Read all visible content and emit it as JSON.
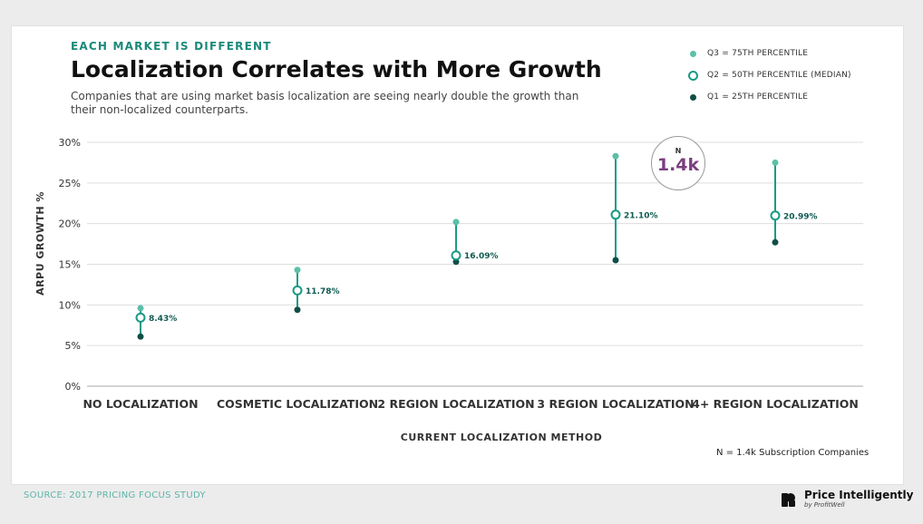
{
  "header": {
    "eyebrow": "EACH MARKET IS DIFFERENT",
    "title": "Localization Correlates with More Growth",
    "subtitle": "Companies that are using market basis localization are seeing nearly double the growth than their non-localized counterparts."
  },
  "legend": [
    {
      "key": "q3",
      "label": "Q3 = 75TH PERCENTILE"
    },
    {
      "key": "q2",
      "label": "Q2 = 50TH PERCENTILE (MEDIAN)"
    },
    {
      "key": "q1",
      "label": "Q1 = 25TH PERCENTILE"
    }
  ],
  "n_bubble": {
    "label": "N",
    "value": "1.4k"
  },
  "n_note": "N = 1.4k Subscription Companies",
  "source": "SOURCE: 2017 PRICING FOCUS STUDY",
  "brand": {
    "name": "Price Intelligently",
    "sub": "by ProfitWell"
  },
  "colors": {
    "q3": "#5bbfa8",
    "q2": "#1a9a85",
    "q1": "#0f4f47",
    "line": "#1a9a85",
    "accent_purple": "#7a3f7f",
    "grid": "#dddddd",
    "eyebrow": "#1a8a7a"
  },
  "chart_data": {
    "type": "range-dot",
    "title": "Localization Correlates with More Growth",
    "xlabel": "CURRENT LOCALIZATION METHOD",
    "ylabel": "ARPU GROWTH %",
    "ylim": [
      0,
      30
    ],
    "yticks": [
      "0%",
      "5%",
      "10%",
      "15%",
      "20%",
      "25%",
      "30%"
    ],
    "grid": true,
    "categories": [
      "NO LOCALIZATION",
      "COSMETIC LOCALIZATION",
      "2 REGION LOCALIZATION",
      "3 REGION LOCALIZATION",
      "4+ REGION LOCALIZATION"
    ],
    "series": [
      {
        "name": "Q3 = 75TH PERCENTILE",
        "values": [
          9.6,
          14.3,
          20.2,
          28.3,
          27.5
        ]
      },
      {
        "name": "Q2 = 50TH PERCENTILE (MEDIAN)",
        "values": [
          8.43,
          11.78,
          16.09,
          21.1,
          20.99
        ]
      },
      {
        "name": "Q1 = 25TH PERCENTILE",
        "values": [
          6.1,
          9.4,
          15.3,
          15.5,
          17.7
        ]
      }
    ],
    "median_labels": [
      "8.43%",
      "11.78%",
      "16.09%",
      "21.10%",
      "20.99%"
    ]
  }
}
